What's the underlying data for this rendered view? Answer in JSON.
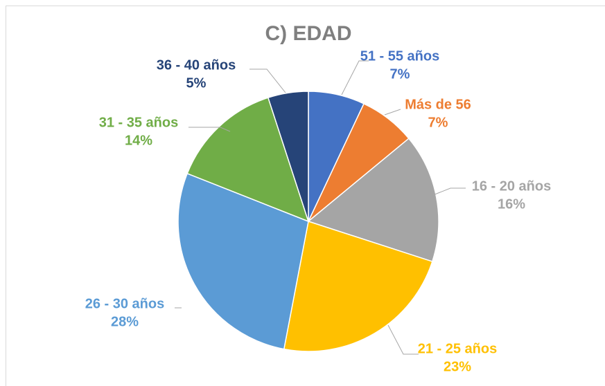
{
  "chart_data": {
    "type": "pie",
    "title": "C) EDAD",
    "categories": [
      "51 - 55 años",
      "Más de 56",
      "16 - 20 años",
      "21 - 25 años",
      "26 - 30 años",
      "31 - 35 años",
      "36 - 40 años"
    ],
    "values": [
      7,
      7,
      16,
      23,
      28,
      14,
      5
    ],
    "value_labels": [
      "7%",
      "7%",
      "16%",
      "23%",
      "28%",
      "14%",
      "5%"
    ],
    "colors": [
      "#4472c4",
      "#ed7d31",
      "#a5a5a5",
      "#ffc000",
      "#5b9bd5",
      "#70ad47",
      "#264478"
    ]
  }
}
